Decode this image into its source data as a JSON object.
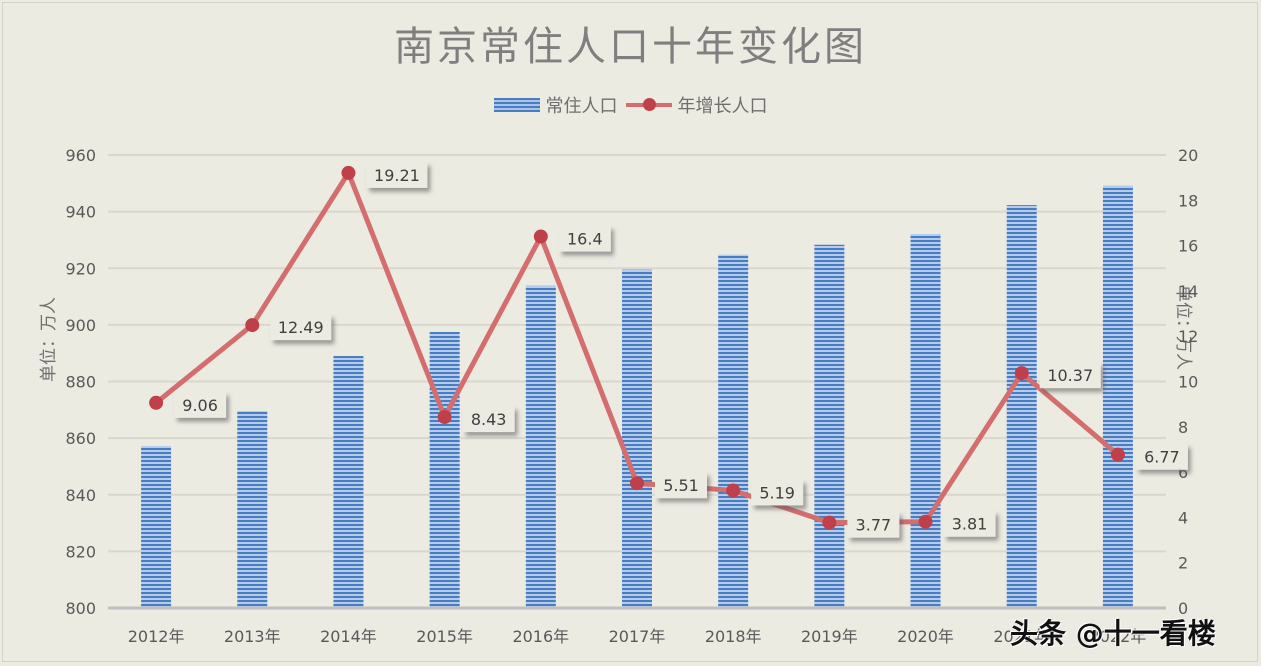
{
  "chart_data": {
    "type": "bar+line",
    "title": "南京常住人口十年变化图",
    "legend": [
      "常住人口",
      "年增长人口"
    ],
    "legend_position": "top",
    "categories": [
      "2012年",
      "2013年",
      "2014年",
      "2015年",
      "2016年",
      "2017年",
      "2018年",
      "2019年",
      "2020年",
      "2021年",
      "2022年"
    ],
    "series": [
      {
        "name": "常住人口",
        "type": "bar",
        "axis": "left",
        "color": "#4a7cc0",
        "values": [
          857.2,
          869.6,
          889.0,
          897.5,
          913.8,
          919.5,
          924.8,
          928.3,
          932.1,
          942.3,
          949.1
        ]
      },
      {
        "name": "年增长人口",
        "type": "line",
        "axis": "right",
        "color": "#d46e6e",
        "marker_color": "#c0404a",
        "values": [
          9.06,
          12.49,
          19.21,
          8.43,
          16.4,
          5.51,
          5.19,
          3.77,
          3.81,
          10.37,
          6.77
        ],
        "data_labels": [
          "9.06",
          "12.49",
          "19.21",
          "8.43",
          "16.4",
          "5.51",
          "5.19",
          "3.77",
          "3.81",
          "10.37",
          "6.77"
        ]
      }
    ],
    "ylabel": "单位：万人",
    "y2label": "单位：万人",
    "ylim": [
      800,
      960
    ],
    "yticks": [
      800,
      820,
      840,
      860,
      880,
      900,
      920,
      940,
      960
    ],
    "y2lim": [
      0,
      20
    ],
    "y2ticks": [
      0,
      2,
      4,
      6,
      8,
      10,
      12,
      14,
      16,
      18,
      20
    ],
    "grid": true
  },
  "watermark": "头条 @十一看楼"
}
